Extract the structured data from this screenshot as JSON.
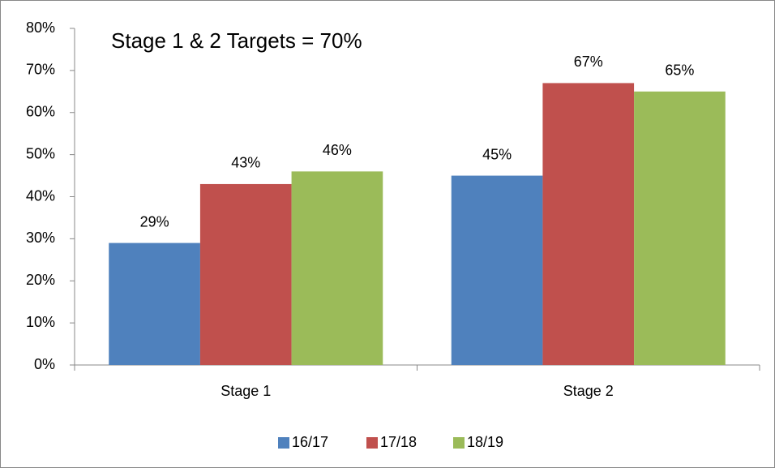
{
  "chart_data": {
    "type": "bar",
    "annotations": [
      "Stage 1 & 2 Targets = 70%"
    ],
    "categories": [
      "Stage 1",
      "Stage 2"
    ],
    "series": [
      {
        "name": "16/17",
        "color": "#4f81bd",
        "values": [
          29,
          45
        ],
        "value_labels": [
          "29%",
          "45%"
        ]
      },
      {
        "name": "17/18",
        "color": "#c0504d",
        "values": [
          43,
          67
        ],
        "value_labels": [
          "43%",
          "67%"
        ]
      },
      {
        "name": "18/19",
        "color": "#9bbb59",
        "values": [
          46,
          65
        ],
        "value_labels": [
          "46%",
          "65%"
        ]
      }
    ],
    "ylim": [
      0,
      80
    ],
    "yticks": [
      {
        "value": 0,
        "label": "0%"
      },
      {
        "value": 10,
        "label": "10%"
      },
      {
        "value": 20,
        "label": "20%"
      },
      {
        "value": 30,
        "label": "30%"
      },
      {
        "value": 40,
        "label": "40%"
      },
      {
        "value": 50,
        "label": "50%"
      },
      {
        "value": 60,
        "label": "60%"
      },
      {
        "value": 70,
        "label": "70%"
      },
      {
        "value": 80,
        "label": "80%"
      }
    ],
    "grid": false,
    "legend": "bottom"
  }
}
